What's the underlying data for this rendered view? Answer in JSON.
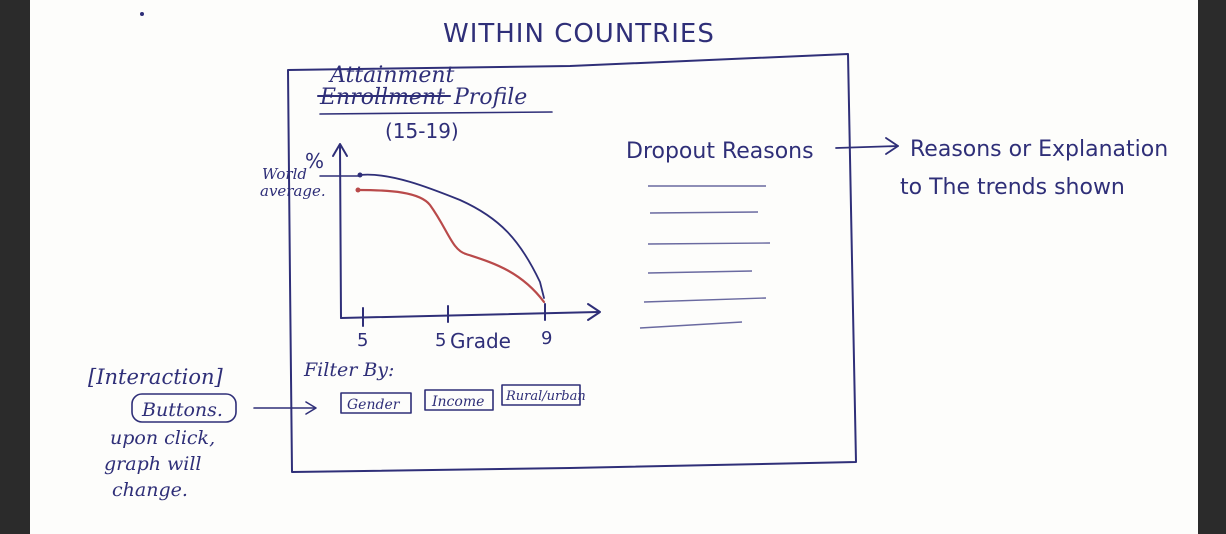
{
  "sketch": {
    "title": "WITHIN COUNTRIES",
    "panel": {
      "heading_top": "Attainment",
      "heading_struck": "Enrollment",
      "heading_suffix": "Profile",
      "age_range": "(15-19)"
    },
    "chart": {
      "y_axis_label": "%",
      "reference_label_line1": "World",
      "reference_label_line2": "average.",
      "x_ticks": [
        "5",
        "5",
        "9"
      ],
      "x_axis_label": "Grade"
    },
    "filter": {
      "label": "Filter By:",
      "buttons": [
        "Gender",
        "Income",
        "Rural/urban"
      ]
    },
    "dropout": {
      "label": "Dropout Reasons",
      "arrow_note_line1": "Reasons or Explanation",
      "arrow_note_line2": "to The trends shown"
    },
    "interaction_note": {
      "line1": "[Interaction]",
      "line2": "Buttons.",
      "line3": "upon click,",
      "line4": "graph will",
      "line5": "change."
    },
    "colors": {
      "ink": "#2f2f78",
      "red_line": "#b94a4a",
      "paper": "#fdfdfb"
    }
  }
}
